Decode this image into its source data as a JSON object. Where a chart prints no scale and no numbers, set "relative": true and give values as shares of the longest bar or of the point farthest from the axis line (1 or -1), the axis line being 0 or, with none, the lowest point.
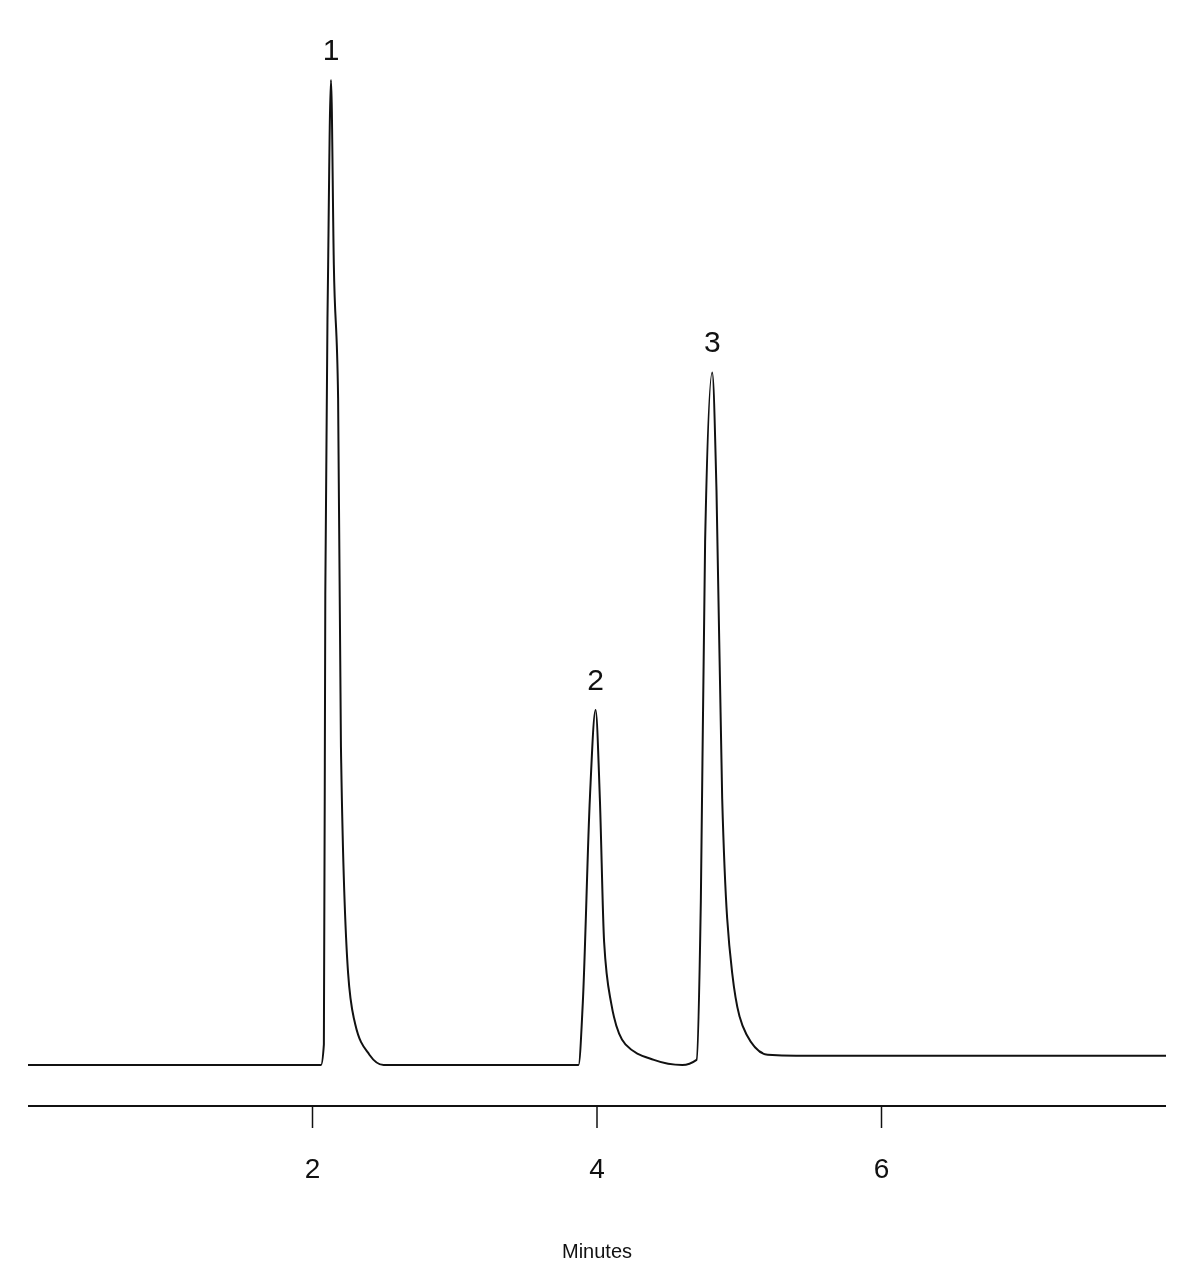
{
  "chart_data": {
    "type": "line",
    "relative": true,
    "xlabel": "Minutes",
    "xlim": [
      0,
      8
    ],
    "xticks": [
      2,
      4,
      6
    ],
    "grid": false,
    "marker": "none",
    "line_style": "solid",
    "series": [
      {
        "color": "#111111",
        "x": [
          0,
          2.06,
          2.08,
          2.09,
          2.11,
          2.13,
          2.15,
          2.18,
          2.2,
          2.25,
          2.3,
          2.4,
          2.5,
          3.87,
          3.9,
          3.95,
          3.99,
          4.02,
          4.05,
          4.1,
          4.2,
          4.4,
          4.6,
          4.7,
          4.73,
          4.76,
          4.81,
          4.84,
          4.88,
          4.95,
          5.05,
          5.2,
          5.4,
          8
        ],
        "values": [
          0.04,
          0.04,
          0.06,
          0.5,
          0.82,
          1,
          0.82,
          0.69,
          0.35,
          0.13,
          0.08,
          0.05,
          0.04,
          0.04,
          0.1,
          0.3,
          0.386,
          0.3,
          0.16,
          0.1,
          0.06,
          0.045,
          0.04,
          0.045,
          0.2,
          0.55,
          0.715,
          0.6,
          0.3,
          0.13,
          0.07,
          0.05,
          0.049,
          0.049
        ]
      }
    ],
    "annotations": [
      {
        "text": "1",
        "x": 2.13,
        "y": 1
      },
      {
        "text": "2",
        "x": 3.99,
        "y": 0.386
      },
      {
        "text": "3",
        "x": 4.81,
        "y": 0.715
      }
    ]
  }
}
